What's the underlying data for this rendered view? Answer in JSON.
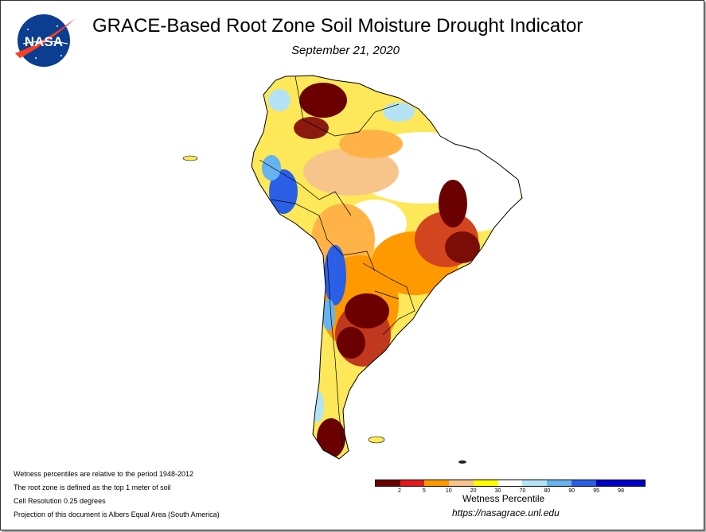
{
  "header": {
    "logo_text": "NASA",
    "title": "GRACE-Based Root Zone Soil Moisture Drought Indicator",
    "date": "September 21, 2020"
  },
  "notes": [
    "Wetness percentiles are relative to the period 1948-2012",
    "The root zone is defined as the top 1 meter of soil",
    "Cell Resolution 0.25 degrees",
    "Projection of this document is Albers Equal Area (South America)"
  ],
  "legend": {
    "title": "Wetness Percentile",
    "ticks": [
      "2",
      "5",
      "10",
      "20",
      "30",
      "70",
      "80",
      "90",
      "95",
      "98"
    ],
    "colors": [
      "#6b0000",
      "#e31a1c",
      "#ff9900",
      "#f7c48a",
      "#ffff00",
      "#ffffff",
      "#b3e3f5",
      "#66b3f0",
      "#2a5fe6",
      "#0000c8"
    ]
  },
  "url": "https://nasagrace.unl.edu"
}
